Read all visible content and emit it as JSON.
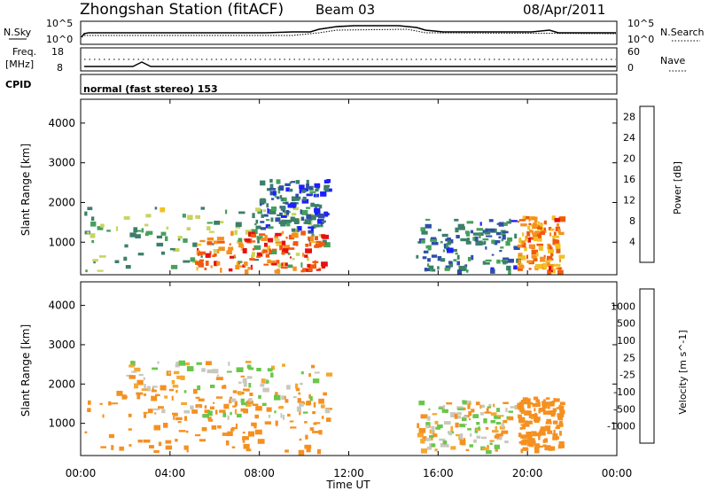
{
  "header": {
    "station": "Zhongshan Station (fitACF)",
    "beam": "Beam 03",
    "date": "08/Apr/2011"
  },
  "top_panels": {
    "nsky_label": "N.Sky",
    "nsearch_label": "N.Search",
    "nsky_ticks": [
      "10^5",
      "10^0"
    ],
    "nsearch_ticks": [
      "10^5",
      "10^0"
    ],
    "freq_label_1": "Freq.",
    "freq_label_2": "[MHz]",
    "freq_ticks": [
      "18",
      "8"
    ],
    "nave_label": "Nave",
    "nave_ticks": [
      "60",
      "0"
    ],
    "cpid_label": "CPID",
    "cpid_text": "normal (fast stereo) 153"
  },
  "colors": {
    "power": [
      "#1f1fff",
      "#2f4fa8",
      "#3c7f6a",
      "#46a05a",
      "#c9d45c",
      "#f2c020",
      "#f59020",
      "#f05a10",
      "#e81010"
    ],
    "velocity": [
      "#e81010",
      "#f05a10",
      "#f59020",
      "#f5a830",
      "#c8c8c0",
      "#c8c8c0",
      "#6ac64a",
      "#3c7f6a",
      "#2f4fa8",
      "#1f1fff"
    ]
  },
  "chart_data": [
    {
      "type": "heatmap",
      "title": "Power",
      "xlabel": "",
      "ylabel": "Slant Range [km]",
      "xlim": [
        "00:00",
        "00:00"
      ],
      "ylim": [
        180,
        4600
      ],
      "y_ticks": [
        1000,
        2000,
        3000,
        4000
      ],
      "x_ticks": [
        "00:00",
        "04:00",
        "08:00",
        "12:00",
        "16:00",
        "20:00",
        "00:00"
      ],
      "colorbar_label": "Power [dB]",
      "colorbar_ticks": [
        4,
        8,
        12,
        16,
        20,
        24,
        28
      ],
      "colorbar_range": [
        0,
        30
      ],
      "echo_regions": [
        {
          "t_start": "00:10",
          "t_end": "11:00",
          "range_low": 300,
          "range_high": 1900,
          "power_db": 12
        },
        {
          "t_start": "05:00",
          "t_end": "11:00",
          "range_low": 300,
          "range_high": 1300,
          "power_db": 24
        },
        {
          "t_start": "08:00",
          "t_end": "11:00",
          "range_low": 1300,
          "range_high": 2600,
          "power_db": 6
        },
        {
          "t_start": "15:00",
          "t_end": "19:30",
          "range_low": 300,
          "range_high": 1600,
          "power_db": 8
        },
        {
          "t_start": "19:30",
          "t_end": "21:30",
          "range_low": 300,
          "range_high": 1700,
          "power_db": 22
        }
      ]
    },
    {
      "type": "heatmap",
      "title": "Velocity",
      "xlabel": "Time UT",
      "ylabel": "Slant Range [km]",
      "xlim": [
        "00:00",
        "00:00"
      ],
      "ylim": [
        180,
        4600
      ],
      "y_ticks": [
        1000,
        2000,
        3000,
        4000
      ],
      "x_ticks": [
        "00:00",
        "04:00",
        "08:00",
        "12:00",
        "16:00",
        "20:00",
        "00:00"
      ],
      "colorbar_label": "Velocity [m s^-1]",
      "colorbar_ticks": [
        "1000",
        "500",
        "100",
        "25",
        "-25",
        "-100",
        "-500",
        "-1000"
      ],
      "colorbar_range": [
        -1000,
        1000
      ],
      "echo_regions": [
        {
          "t_start": "00:10",
          "t_end": "11:00",
          "range_low": 300,
          "range_high": 1900,
          "velocity": -300
        },
        {
          "t_start": "02:00",
          "t_end": "11:00",
          "range_low": 1200,
          "range_high": 2600,
          "velocity": 0
        },
        {
          "t_start": "15:00",
          "t_end": "19:30",
          "range_low": 300,
          "range_high": 1600,
          "velocity": 0
        },
        {
          "t_start": "19:30",
          "t_end": "21:30",
          "range_low": 300,
          "range_high": 1700,
          "velocity": -300
        }
      ]
    }
  ]
}
